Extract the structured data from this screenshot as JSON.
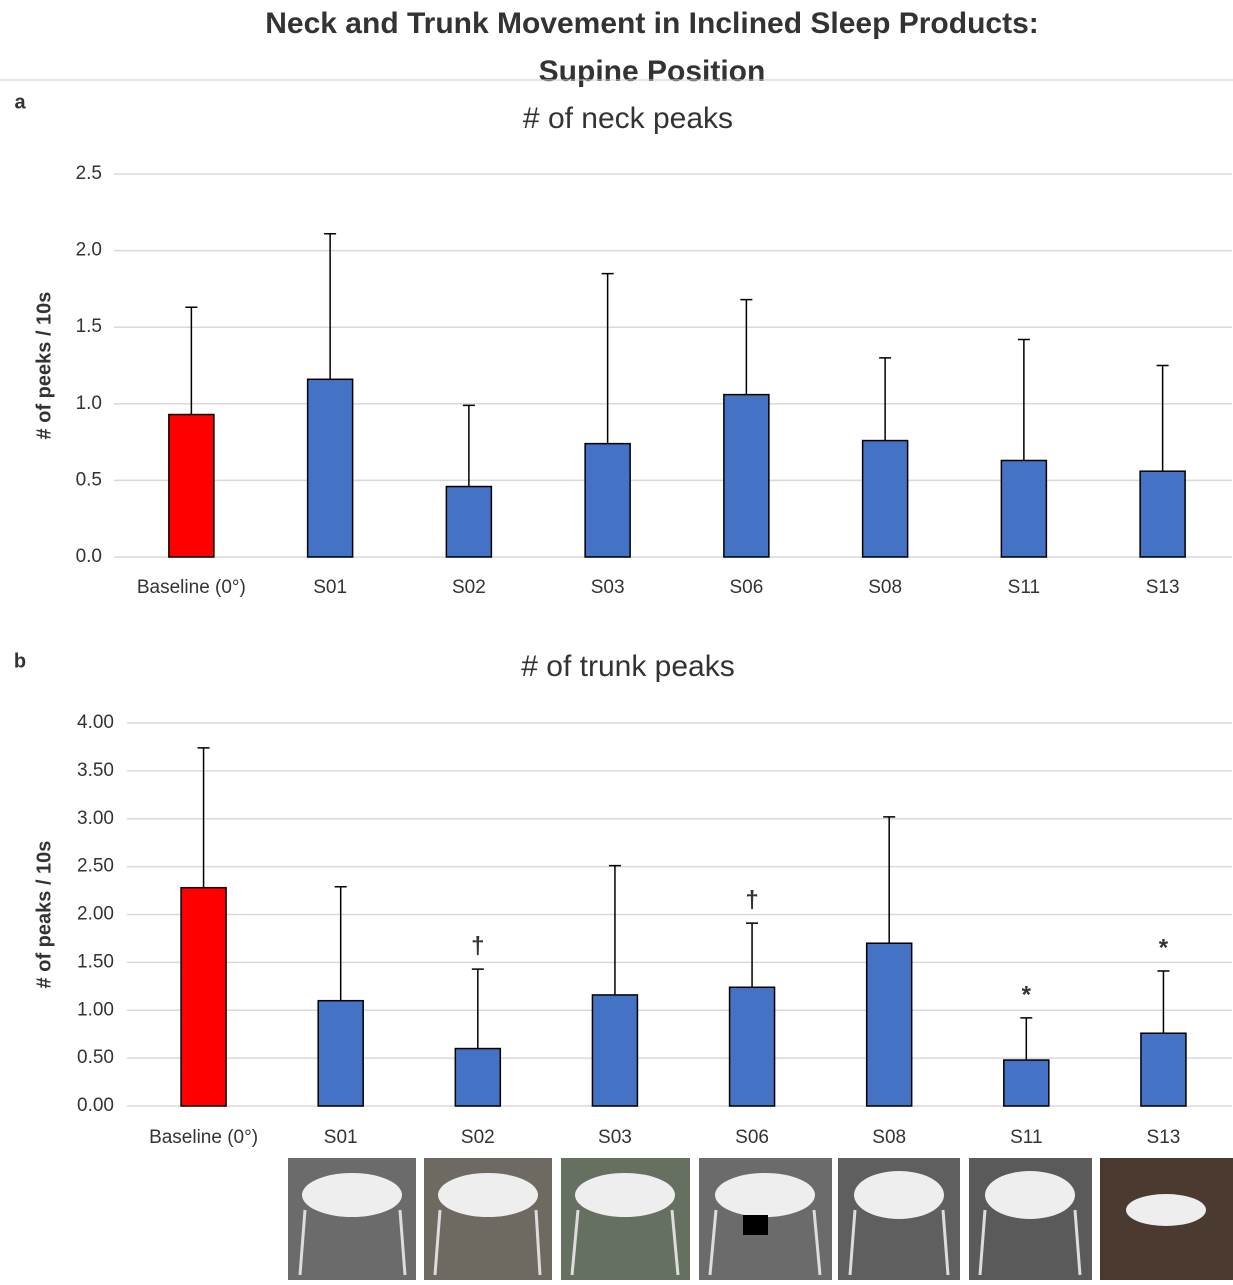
{
  "title": [
    "Neck and Trunk Movement in Inclined Sleep Products:",
    "Supine Position"
  ],
  "chart_data": [
    {
      "type": "bar",
      "panel": "a",
      "title": "# of neck peaks",
      "y_label": "# of peeks / 10s",
      "categories": [
        "Baseline (0°)",
        "S01",
        "S02",
        "S03",
        "S06",
        "S08",
        "S11",
        "S13"
      ],
      "values": [
        0.93,
        1.16,
        0.46,
        0.74,
        1.06,
        0.76,
        0.63,
        0.56
      ],
      "errors": [
        0.7,
        0.95,
        0.53,
        1.11,
        0.62,
        0.54,
        0.79,
        0.69
      ],
      "colors": [
        "#ff0000",
        "#4472c4",
        "#4472c4",
        "#4472c4",
        "#4472c4",
        "#4472c4",
        "#4472c4",
        "#4472c4"
      ],
      "ylim": [
        0,
        2.5
      ],
      "yticks": [
        {
          "value": 0,
          "label": "0.0"
        },
        0.5,
        {
          "value": 1,
          "label": "1.0"
        },
        1.5,
        {
          "value": 2,
          "label": "2.0"
        },
        2.5
      ],
      "grid": true
    },
    {
      "type": "bar",
      "panel": "b",
      "title": "# of trunk peaks",
      "y_label": "# of peaks / 10s",
      "categories": [
        "Baseline (0°)",
        "S01",
        "S02",
        "S03",
        "S06",
        "S08",
        "S11",
        "S13"
      ],
      "values": [
        2.28,
        1.1,
        0.6,
        1.16,
        1.24,
        1.7,
        0.48,
        0.76
      ],
      "errors": [
        1.46,
        1.19,
        0.83,
        1.35,
        0.67,
        1.32,
        0.44,
        0.65
      ],
      "significance": [
        null,
        null,
        "†",
        null,
        "†",
        null,
        "*",
        "*"
      ],
      "colors": [
        "#ff0000",
        "#4472c4",
        "#4472c4",
        "#4472c4",
        "#4472c4",
        "#4472c4",
        "#4472c4",
        "#4472c4"
      ],
      "ylim": [
        0,
        4
      ],
      "yticks": [
        {
          "value": 0,
          "label": "0.00"
        },
        {
          "value": 0.5,
          "label": "0.50"
        },
        {
          "value": 1,
          "label": "1.00"
        },
        {
          "value": 1.5,
          "label": "1.50"
        },
        {
          "value": 2,
          "label": "2.00"
        },
        {
          "value": 2.5,
          "label": "2.50"
        },
        {
          "value": 3,
          "label": "3.00"
        },
        {
          "value": 3.5,
          "label": "3.50"
        },
        {
          "value": 4,
          "label": "4.00"
        }
      ],
      "grid": true
    }
  ]
}
